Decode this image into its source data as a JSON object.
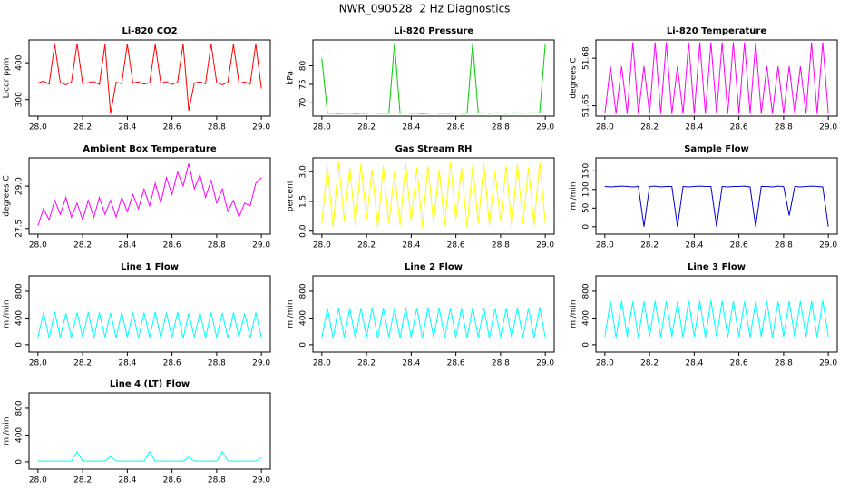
{
  "title": "NWR_090528  2 Hz Diagnostics",
  "chart_data": [
    {
      "type": "line",
      "title": "Li-820 CO2",
      "ylabel": "Licor ppm",
      "color": "#ff0000",
      "x": [
        28,
        28.025,
        28.05,
        28.075,
        28.1,
        28.125,
        28.15,
        28.175,
        28.2,
        28.225,
        28.25,
        28.275,
        28.3,
        28.325,
        28.35,
        28.375,
        28.4,
        28.425,
        28.45,
        28.475,
        28.5,
        28.525,
        28.55,
        28.575,
        28.6,
        28.625,
        28.65,
        28.675,
        28.7,
        28.725,
        28.75,
        28.775,
        28.8,
        28.825,
        28.85,
        28.875,
        28.9,
        28.925,
        28.95,
        28.975,
        29
      ],
      "values": [
        345,
        350,
        342,
        450,
        346,
        340,
        348,
        452,
        344,
        346,
        349,
        341,
        450,
        262,
        347,
        343,
        451,
        345,
        348,
        342,
        346,
        450,
        344,
        349,
        341,
        347,
        452,
        270,
        345,
        348,
        343,
        451,
        346,
        340,
        347,
        450,
        344,
        348,
        342,
        451,
        330
      ],
      "xlim": [
        27.96,
        29.04
      ],
      "xticks": [
        {
          "value": 28,
          "label": "28.0"
        },
        28.2,
        28.4,
        28.6,
        28.8,
        {
          "value": 29,
          "label": "29.0"
        }
      ],
      "ylim": [
        255,
        462
      ],
      "yticks": [
        300,
        400
      ]
    },
    {
      "type": "line",
      "title": "Li-820 Pressure",
      "ylabel": "kPa",
      "color": "#00cc00",
      "x": [
        28,
        28.025,
        28.05,
        28.075,
        28.1,
        28.125,
        28.15,
        28.175,
        28.2,
        28.225,
        28.25,
        28.275,
        28.3,
        28.325,
        28.35,
        28.375,
        28.4,
        28.425,
        28.45,
        28.475,
        28.5,
        28.525,
        28.55,
        28.575,
        28.6,
        28.625,
        28.65,
        28.675,
        28.7,
        28.725,
        28.75,
        28.775,
        28.8,
        28.825,
        28.85,
        28.875,
        28.9,
        28.925,
        28.95,
        28.975,
        29
      ],
      "values": [
        82,
        67.2,
        67.2,
        67.1,
        67.2,
        67.2,
        67.1,
        67.2,
        67.2,
        67.3,
        67.2,
        67.2,
        67.2,
        86,
        67.2,
        67.3,
        67.2,
        67.2,
        67.1,
        67.2,
        67.3,
        67.2,
        67.2,
        67.2,
        67.3,
        67.2,
        67.2,
        86,
        67.3,
        67.3,
        67.2,
        67.3,
        67.3,
        67.2,
        67.3,
        67.3,
        67.2,
        67.3,
        67.3,
        67.3,
        86
      ],
      "xlim": [
        27.96,
        29.04
      ],
      "xticks": [
        {
          "value": 28,
          "label": "28.0"
        },
        28.2,
        28.4,
        28.6,
        28.8,
        {
          "value": 29,
          "label": "29.0"
        }
      ],
      "ylim": [
        66.4,
        87
      ],
      "yticks": [
        70,
        75,
        80
      ]
    },
    {
      "type": "line",
      "title": "Li-820 Temperature",
      "ylabel": "degrees C",
      "color": "#ff00ff",
      "x": [
        28,
        28.025,
        28.05,
        28.075,
        28.1,
        28.125,
        28.15,
        28.175,
        28.2,
        28.225,
        28.25,
        28.275,
        28.3,
        28.325,
        28.35,
        28.375,
        28.4,
        28.425,
        28.45,
        28.475,
        28.5,
        28.525,
        28.55,
        28.575,
        28.6,
        28.625,
        28.65,
        28.675,
        28.7,
        28.725,
        28.75,
        28.775,
        28.8,
        28.825,
        28.85,
        28.875,
        28.9,
        28.925,
        28.95,
        28.975,
        29
      ],
      "values": [
        51.645,
        51.675,
        51.645,
        51.675,
        51.645,
        51.69,
        51.645,
        51.675,
        51.645,
        51.69,
        51.645,
        51.69,
        51.645,
        51.675,
        51.645,
        51.69,
        51.645,
        51.69,
        51.645,
        51.69,
        51.645,
        51.69,
        51.645,
        51.69,
        51.645,
        51.69,
        51.645,
        51.69,
        51.645,
        51.675,
        51.645,
        51.675,
        51.645,
        51.675,
        51.645,
        51.675,
        51.645,
        51.69,
        51.645,
        51.69,
        51.645
      ],
      "xlim": [
        27.96,
        29.04
      ],
      "xticks": [
        {
          "value": 28,
          "label": "28.0"
        },
        28.2,
        28.4,
        28.6,
        28.8,
        {
          "value": 29,
          "label": "29.0"
        }
      ],
      "ylim": [
        51.6435,
        51.6915
      ],
      "yticks": [
        51.65,
        51.68
      ]
    },
    {
      "type": "line",
      "title": "Ambient Box Temperature",
      "ylabel": "degrees C",
      "color": "#ff00ff",
      "x": [
        28,
        28.025,
        28.05,
        28.075,
        28.1,
        28.125,
        28.15,
        28.175,
        28.2,
        28.225,
        28.25,
        28.275,
        28.3,
        28.325,
        28.35,
        28.375,
        28.4,
        28.425,
        28.45,
        28.475,
        28.5,
        28.525,
        28.55,
        28.575,
        28.6,
        28.625,
        28.65,
        28.675,
        28.7,
        28.725,
        28.75,
        28.775,
        28.8,
        28.825,
        28.85,
        28.875,
        28.9,
        28.925,
        28.95,
        28.975,
        29
      ],
      "values": [
        27.6,
        28.2,
        27.8,
        28.5,
        28.0,
        28.6,
        27.9,
        28.4,
        27.8,
        28.5,
        27.9,
        28.6,
        28.0,
        28.5,
        27.9,
        28.6,
        28.1,
        28.7,
        28.2,
        28.9,
        28.3,
        29.1,
        28.4,
        29.3,
        28.7,
        29.5,
        29.0,
        29.8,
        28.9,
        29.4,
        28.6,
        29.2,
        28.4,
        28.9,
        28.1,
        28.5,
        27.9,
        28.4,
        28.3,
        29.1,
        29.3
      ],
      "xlim": [
        27.96,
        29.04
      ],
      "xticks": [
        {
          "value": 28,
          "label": "28.0"
        },
        28.2,
        28.4,
        28.6,
        28.8,
        {
          "value": 29,
          "label": "29.0"
        }
      ],
      "ylim": [
        27.3,
        30.0
      ],
      "yticks": [
        27.5,
        {
          "value": 29,
          "label": "29.0"
        }
      ]
    },
    {
      "type": "line",
      "title": "Gas Stream RH",
      "ylabel": "percent",
      "color": "#ffff00",
      "x": [
        28,
        28.025,
        28.05,
        28.075,
        28.1,
        28.125,
        28.15,
        28.175,
        28.2,
        28.225,
        28.25,
        28.275,
        28.3,
        28.325,
        28.35,
        28.375,
        28.4,
        28.425,
        28.45,
        28.475,
        28.5,
        28.525,
        28.55,
        28.575,
        28.6,
        28.625,
        28.65,
        28.675,
        28.7,
        28.725,
        28.75,
        28.775,
        28.8,
        28.825,
        28.85,
        28.875,
        28.9,
        28.925,
        28.95,
        28.975,
        29
      ],
      "values": [
        0.4,
        3.3,
        0.2,
        3.5,
        0.5,
        3.2,
        0.3,
        3.4,
        0.6,
        3.1,
        0.2,
        3.3,
        0.4,
        3.0,
        0.3,
        3.4,
        0.5,
        3.2,
        0.2,
        3.3,
        0.4,
        3.1,
        0.3,
        3.5,
        0.6,
        3.2,
        0.2,
        3.3,
        0.4,
        3.4,
        0.3,
        3.0,
        0.5,
        3.3,
        0.2,
        3.4,
        0.4,
        3.2,
        0.3,
        3.5,
        0.4
      ],
      "xlim": [
        27.96,
        29.04
      ],
      "xticks": [
        {
          "value": 28,
          "label": "28.0"
        },
        28.2,
        28.4,
        28.6,
        28.8,
        {
          "value": 29,
          "label": "29.0"
        }
      ],
      "ylim": [
        -0.15,
        3.7
      ],
      "yticks": [
        {
          "value": 0,
          "label": "0.0"
        },
        1.5,
        {
          "value": 3,
          "label": "3.0"
        }
      ]
    },
    {
      "type": "line",
      "title": "Sample Flow",
      "ylabel": "ml/min",
      "color": "#0000cc",
      "x": [
        28,
        28.025,
        28.05,
        28.075,
        28.1,
        28.125,
        28.15,
        28.175,
        28.2,
        28.225,
        28.25,
        28.275,
        28.3,
        28.325,
        28.35,
        28.375,
        28.4,
        28.425,
        28.45,
        28.475,
        28.5,
        28.525,
        28.55,
        28.575,
        28.6,
        28.625,
        28.65,
        28.675,
        28.7,
        28.725,
        28.75,
        28.775,
        28.8,
        28.825,
        28.85,
        28.875,
        28.9,
        28.925,
        28.95,
        28.975,
        29
      ],
      "values": [
        108,
        107,
        108,
        109,
        108,
        107,
        108,
        0,
        108,
        109,
        107,
        108,
        108,
        0,
        108,
        107,
        108,
        109,
        108,
        108,
        0,
        108,
        107,
        108,
        108,
        109,
        107,
        0,
        108,
        108,
        107,
        109,
        108,
        30,
        108,
        107,
        108,
        109,
        108,
        107,
        0
      ],
      "xlim": [
        27.96,
        29.04
      ],
      "xticks": [
        {
          "value": 28,
          "label": "28.0"
        },
        28.2,
        28.4,
        28.6,
        28.8,
        {
          "value": 29,
          "label": "29.0"
        }
      ],
      "ylim": [
        -20,
        185
      ],
      "yticks": [
        0,
        50,
        100,
        150
      ]
    },
    {
      "type": "line",
      "title": "Line 1 Flow",
      "ylabel": "ml/min",
      "color": "#00ffff",
      "x": [
        28,
        28.025,
        28.05,
        28.075,
        28.1,
        28.125,
        28.15,
        28.175,
        28.2,
        28.225,
        28.25,
        28.275,
        28.3,
        28.325,
        28.35,
        28.375,
        28.4,
        28.425,
        28.45,
        28.475,
        28.5,
        28.525,
        28.55,
        28.575,
        28.6,
        28.625,
        28.65,
        28.675,
        28.7,
        28.725,
        28.75,
        28.775,
        28.8,
        28.825,
        28.85,
        28.875,
        28.9,
        28.925,
        28.95,
        28.975,
        29
      ],
      "values": [
        110,
        480,
        100,
        485,
        110,
        470,
        100,
        480,
        110,
        485,
        100,
        480,
        110,
        475,
        100,
        485,
        110,
        480,
        100,
        480,
        110,
        490,
        100,
        480,
        110,
        485,
        100,
        470,
        110,
        480,
        100,
        480,
        110,
        475,
        100,
        480,
        110,
        470,
        100,
        480,
        110
      ],
      "xlim": [
        27.96,
        29.04
      ],
      "xticks": [
        {
          "value": 28,
          "label": "28.0"
        },
        28.2,
        28.4,
        28.6,
        28.8,
        {
          "value": 29,
          "label": "29.0"
        }
      ],
      "ylim": [
        -110,
        1030
      ],
      "yticks": [
        0,
        400,
        800
      ]
    },
    {
      "type": "line",
      "title": "Line 2 Flow",
      "ylabel": "ml/min",
      "color": "#00ffff",
      "x": [
        28,
        28.025,
        28.05,
        28.075,
        28.1,
        28.125,
        28.15,
        28.175,
        28.2,
        28.225,
        28.25,
        28.275,
        28.3,
        28.325,
        28.35,
        28.375,
        28.4,
        28.425,
        28.45,
        28.475,
        28.5,
        28.525,
        28.55,
        28.575,
        28.6,
        28.625,
        28.65,
        28.675,
        28.7,
        28.725,
        28.75,
        28.775,
        28.8,
        28.825,
        28.85,
        28.875,
        28.9,
        28.925,
        28.95,
        28.975,
        29
      ],
      "values": [
        110,
        550,
        100,
        555,
        110,
        545,
        100,
        550,
        110,
        555,
        100,
        550,
        110,
        545,
        100,
        555,
        110,
        550,
        100,
        560,
        110,
        555,
        100,
        550,
        110,
        545,
        100,
        555,
        110,
        550,
        100,
        545,
        110,
        550,
        100,
        555,
        110,
        550,
        100,
        560,
        110
      ],
      "xlim": [
        27.96,
        29.04
      ],
      "xticks": [
        {
          "value": 28,
          "label": "28.0"
        },
        28.2,
        28.4,
        28.6,
        28.8,
        {
          "value": 29,
          "label": "29.0"
        }
      ],
      "ylim": [
        -110,
        1030
      ],
      "yticks": [
        0,
        400,
        800
      ]
    },
    {
      "type": "line",
      "title": "Line 3 Flow",
      "ylabel": "ml/min",
      "color": "#00ffff",
      "x": [
        28,
        28.025,
        28.05,
        28.075,
        28.1,
        28.125,
        28.15,
        28.175,
        28.2,
        28.225,
        28.25,
        28.275,
        28.3,
        28.325,
        28.35,
        28.375,
        28.4,
        28.425,
        28.45,
        28.475,
        28.5,
        28.525,
        28.55,
        28.575,
        28.6,
        28.625,
        28.65,
        28.675,
        28.7,
        28.725,
        28.75,
        28.775,
        28.8,
        28.825,
        28.85,
        28.875,
        28.9,
        28.925,
        28.95,
        28.975,
        29
      ],
      "values": [
        120,
        650,
        110,
        655,
        120,
        645,
        110,
        650,
        120,
        655,
        110,
        650,
        120,
        645,
        110,
        655,
        120,
        650,
        110,
        660,
        120,
        655,
        110,
        650,
        120,
        645,
        110,
        655,
        120,
        650,
        110,
        645,
        120,
        650,
        110,
        655,
        120,
        650,
        110,
        660,
        120
      ],
      "xlim": [
        27.96,
        29.04
      ],
      "xticks": [
        {
          "value": 28,
          "label": "28.0"
        },
        28.2,
        28.4,
        28.6,
        28.8,
        {
          "value": 29,
          "label": "29.0"
        }
      ],
      "ylim": [
        -110,
        1030
      ],
      "yticks": [
        0,
        400,
        800
      ]
    },
    {
      "type": "line",
      "title": "Line 4 (LT) Flow",
      "ylabel": "ml/min",
      "color": "#00ffff",
      "x": [
        28,
        28.025,
        28.05,
        28.075,
        28.1,
        28.125,
        28.15,
        28.175,
        28.2,
        28.225,
        28.25,
        28.275,
        28.3,
        28.325,
        28.35,
        28.375,
        28.4,
        28.425,
        28.45,
        28.475,
        28.5,
        28.525,
        28.55,
        28.575,
        28.6,
        28.625,
        28.65,
        28.675,
        28.7,
        28.725,
        28.75,
        28.775,
        28.8,
        28.825,
        28.85,
        28.875,
        28.9,
        28.925,
        28.95,
        28.975,
        29
      ],
      "values": [
        10,
        10,
        10,
        10,
        10,
        10,
        10,
        150,
        10,
        10,
        10,
        10,
        10,
        80,
        10,
        10,
        10,
        10,
        10,
        10,
        150,
        10,
        10,
        10,
        10,
        10,
        10,
        70,
        10,
        10,
        10,
        10,
        10,
        150,
        10,
        10,
        10,
        10,
        10,
        10,
        60
      ],
      "xlim": [
        27.96,
        29.04
      ],
      "xticks": [
        {
          "value": 28,
          "label": "28.0"
        },
        28.2,
        28.4,
        28.6,
        28.8,
        {
          "value": 29,
          "label": "29.0"
        }
      ],
      "ylim": [
        -110,
        1030
      ],
      "yticks": [
        0,
        400,
        800
      ]
    }
  ]
}
